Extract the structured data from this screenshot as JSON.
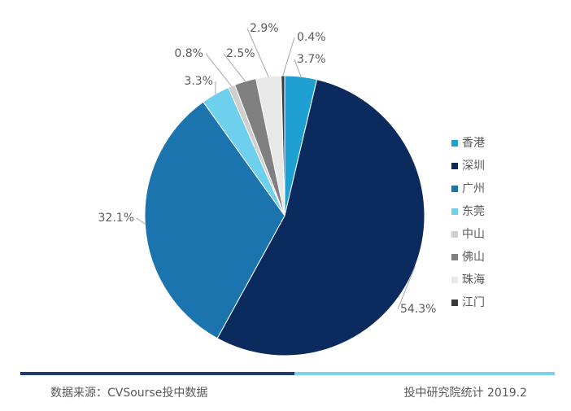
{
  "chart_data": {
    "type": "pie",
    "categories": [
      "香港",
      "深圳",
      "广州",
      "东莞",
      "中山",
      "佛山",
      "珠海",
      "江门"
    ],
    "values": [
      3.7,
      54.3,
      32.1,
      3.3,
      0.8,
      2.5,
      2.9,
      0.4
    ],
    "value_labels": [
      "3.7%",
      "54.3%",
      "32.1%",
      "3.3%",
      "0.8%",
      "2.5%",
      "2.9%",
      "0.4%"
    ],
    "colors": [
      "#1ea0d2",
      "#0b2a5e",
      "#1b74ae",
      "#6fd0ee",
      "#cfcfcf",
      "#808080",
      "#e8e8e8",
      "#3a3a3a"
    ]
  },
  "footer": {
    "source": "数据来源：CVSourse投中数据",
    "credit": "投中研究院统计  2019.2"
  }
}
